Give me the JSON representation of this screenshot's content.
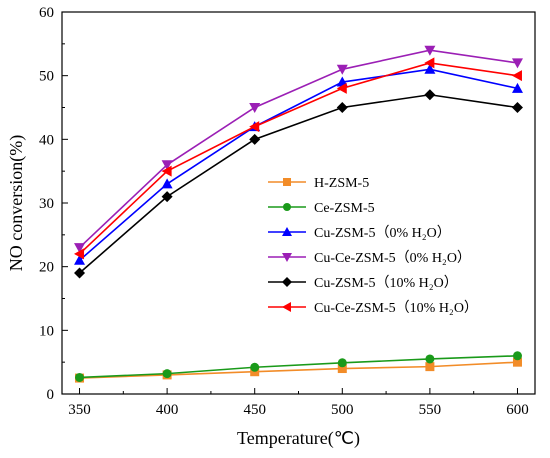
{
  "chart_data": {
    "type": "line",
    "title": "",
    "xlabel": "Temperature(℃)",
    "ylabel": "NO conversion(%)",
    "x": [
      350,
      400,
      450,
      500,
      550,
      600
    ],
    "xlim": [
      340,
      610
    ],
    "ylim": [
      0,
      60
    ],
    "xticks": [
      "350",
      "400",
      "450",
      "500",
      "550",
      "600"
    ],
    "yticks": [
      "0",
      "10",
      "20",
      "30",
      "40",
      "50",
      "60"
    ],
    "grid": false,
    "legend_position": "center-right",
    "series": [
      {
        "name": "H-ZSM-5",
        "marker": "square",
        "color": "#f28c28",
        "values": [
          2.5,
          3.0,
          3.5,
          4.0,
          4.3,
          5.0
        ]
      },
      {
        "name": "Ce-ZSM-5",
        "marker": "circle",
        "color": "#1a9a1a",
        "values": [
          2.6,
          3.2,
          4.2,
          4.9,
          5.5,
          6.0
        ]
      },
      {
        "name": "Cu-ZSM-5（0% H₂O）",
        "marker": "triangle-up",
        "color": "#0000ff",
        "values": [
          21,
          33,
          42,
          49,
          51,
          48
        ]
      },
      {
        "name": "Cu-Ce-ZSM-5（0% H₂O）",
        "marker": "triangle-down",
        "color": "#9b1fb5",
        "values": [
          23,
          36,
          45,
          51,
          54,
          52
        ]
      },
      {
        "name": "Cu-ZSM-5（10% H₂O）",
        "marker": "diamond",
        "color": "#000000",
        "values": [
          19,
          31,
          40,
          45,
          47,
          45
        ]
      },
      {
        "name": "Cu-Ce-ZSM-5（10% H₂O）",
        "marker": "triangle-left",
        "color": "#ff0000",
        "values": [
          22,
          35,
          42,
          48,
          52,
          50
        ]
      }
    ]
  }
}
